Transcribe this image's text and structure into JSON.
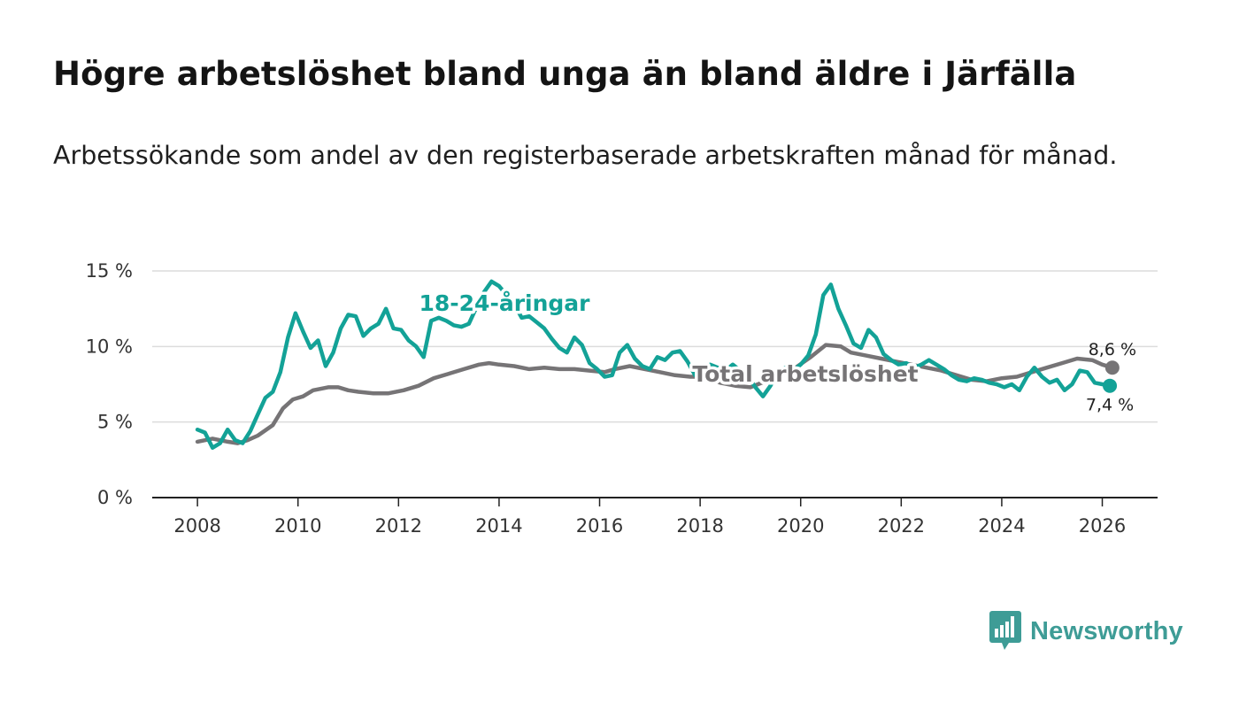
{
  "title": "Högre arbetslöshet bland unga än bland äldre i Järfälla",
  "subtitle": "Arbetssökande som andel av den registerbaserade arbetskraften månad för månad.",
  "brand": {
    "name": "Newsworthy",
    "icon": "bar-chart-speech-bubble-icon",
    "color": "#3e9c96"
  },
  "chart_data": {
    "type": "line",
    "title": "Högre arbetslöshet bland unga än bland äldre i Järfälla",
    "xlabel": "",
    "ylabel": "",
    "x_range": [
      2007.1,
      2027.1
    ],
    "ylim": [
      0,
      15
    ],
    "x_ticks": [
      2008,
      2010,
      2012,
      2014,
      2016,
      2018,
      2020,
      2022,
      2024,
      2026
    ],
    "x_tick_labels": [
      "2008",
      "2010",
      "2012",
      "2014",
      "2016",
      "2018",
      "2020",
      "2022",
      "2024",
      "2026"
    ],
    "y_ticks": [
      0,
      5,
      10,
      15
    ],
    "y_tick_labels": [
      "0 %",
      "5 %",
      "10 %",
      "15 %"
    ],
    "grid": true,
    "series": [
      {
        "name": "Total arbetslöshet",
        "label": "Total arbetslöshet",
        "color": "#767476",
        "end_label": "8,6 %",
        "x": [
          2008.0,
          2008.3,
          2008.6,
          2008.8,
          2009.0,
          2009.2,
          2009.5,
          2009.7,
          2009.9,
          2010.1,
          2010.3,
          2010.6,
          2010.8,
          2011.0,
          2011.2,
          2011.5,
          2011.8,
          2012.1,
          2012.4,
          2012.7,
          2013.0,
          2013.3,
          2013.6,
          2013.8,
          2014.0,
          2014.3,
          2014.6,
          2014.9,
          2015.2,
          2015.5,
          2015.8,
          2016.1,
          2016.3,
          2016.6,
          2016.9,
          2017.2,
          2017.5,
          2017.8,
          2018.1,
          2018.4,
          2018.7,
          2019.0,
          2019.3,
          2019.6,
          2019.9,
          2020.2,
          2020.5,
          2020.8,
          2021.0,
          2021.3,
          2021.6,
          2021.9,
          2022.2,
          2022.5,
          2022.8,
          2023.1,
          2023.4,
          2023.7,
          2024.0,
          2024.3,
          2024.6,
          2024.9,
          2025.2,
          2025.5,
          2025.8,
          2026.0,
          2026.2
        ],
        "y": [
          3.7,
          3.9,
          3.7,
          3.6,
          3.8,
          4.1,
          4.8,
          5.9,
          6.5,
          6.7,
          7.1,
          7.3,
          7.3,
          7.1,
          7.0,
          6.9,
          6.9,
          7.1,
          7.4,
          7.9,
          8.2,
          8.5,
          8.8,
          8.9,
          8.8,
          8.7,
          8.5,
          8.6,
          8.5,
          8.5,
          8.4,
          8.3,
          8.5,
          8.7,
          8.5,
          8.3,
          8.1,
          8.0,
          8.0,
          7.6,
          7.4,
          7.3,
          7.7,
          8.1,
          8.6,
          9.3,
          10.1,
          10.0,
          9.6,
          9.4,
          9.2,
          9.0,
          8.8,
          8.6,
          8.4,
          8.1,
          7.8,
          7.7,
          7.9,
          8.0,
          8.3,
          8.6,
          8.9,
          9.2,
          9.1,
          8.8,
          8.6
        ]
      },
      {
        "name": "18-24-åringar",
        "label": "18-24-åringar",
        "color": "#13a297",
        "end_label": "7,4 %",
        "x": [
          2008.0,
          2008.15,
          2008.3,
          2008.45,
          2008.6,
          2008.75,
          2008.9,
          2009.05,
          2009.2,
          2009.35,
          2009.5,
          2009.65,
          2009.8,
          2009.95,
          2010.1,
          2010.25,
          2010.4,
          2010.55,
          2010.7,
          2010.85,
          2011.0,
          2011.15,
          2011.3,
          2011.45,
          2011.6,
          2011.75,
          2011.9,
          2012.05,
          2012.2,
          2012.35,
          2012.5,
          2012.65,
          2012.8,
          2012.95,
          2013.1,
          2013.25,
          2013.4,
          2013.55,
          2013.7,
          2013.85,
          2014.0,
          2014.15,
          2014.3,
          2014.45,
          2014.6,
          2014.75,
          2014.9,
          2015.05,
          2015.2,
          2015.35,
          2015.5,
          2015.65,
          2015.8,
          2015.95,
          2016.1,
          2016.25,
          2016.4,
          2016.55,
          2016.7,
          2016.85,
          2017.0,
          2017.15,
          2017.3,
          2017.45,
          2017.6,
          2017.75,
          2017.9,
          2018.05,
          2018.2,
          2018.35,
          2018.5,
          2018.65,
          2018.8,
          2018.95,
          2019.1,
          2019.25,
          2019.4,
          2019.55,
          2019.7,
          2019.85,
          2020.0,
          2020.15,
          2020.3,
          2020.45,
          2020.6,
          2020.75,
          2020.9,
          2021.05,
          2021.2,
          2021.35,
          2021.5,
          2021.65,
          2021.8,
          2021.95,
          2022.1,
          2022.25,
          2022.4,
          2022.55,
          2022.7,
          2022.85,
          2023.0,
          2023.15,
          2023.3,
          2023.45,
          2023.6,
          2023.75,
          2023.9,
          2024.05,
          2024.2,
          2024.35,
          2024.5,
          2024.65,
          2024.8,
          2024.95,
          2025.1,
          2025.25,
          2025.4,
          2025.55,
          2025.7,
          2025.85,
          2026.0,
          2026.15
        ],
        "y": [
          4.5,
          4.3,
          3.3,
          3.6,
          4.5,
          3.8,
          3.6,
          4.4,
          5.5,
          6.6,
          7.0,
          8.3,
          10.6,
          12.2,
          11.0,
          9.9,
          10.4,
          8.7,
          9.6,
          11.2,
          12.1,
          12.0,
          10.7,
          11.2,
          11.5,
          12.5,
          11.2,
          11.1,
          10.4,
          10.0,
          9.3,
          11.7,
          11.9,
          11.7,
          11.4,
          11.3,
          11.5,
          12.6,
          13.6,
          14.3,
          14.0,
          13.4,
          12.8,
          11.9,
          12.0,
          11.6,
          11.2,
          10.5,
          9.9,
          9.6,
          10.6,
          10.1,
          8.9,
          8.5,
          8.0,
          8.1,
          9.6,
          10.1,
          9.2,
          8.7,
          8.5,
          9.3,
          9.1,
          9.6,
          9.7,
          9.0,
          8.1,
          8.5,
          8.8,
          8.6,
          8.4,
          8.8,
          8.4,
          8.0,
          7.3,
          6.7,
          7.4,
          8.3,
          8.6,
          8.4,
          8.8,
          9.4,
          10.8,
          13.4,
          14.1,
          12.5,
          11.4,
          10.2,
          9.9,
          11.1,
          10.6,
          9.5,
          9.1,
          8.8,
          8.9,
          8.6,
          8.8,
          9.1,
          8.8,
          8.5,
          8.1,
          7.8,
          7.7,
          7.9,
          7.8,
          7.6,
          7.5,
          7.3,
          7.5,
          7.1,
          8.0,
          8.6,
          8.0,
          7.6,
          7.8,
          7.1,
          7.5,
          8.4,
          8.3,
          7.6,
          7.5,
          7.4
        ]
      }
    ]
  }
}
